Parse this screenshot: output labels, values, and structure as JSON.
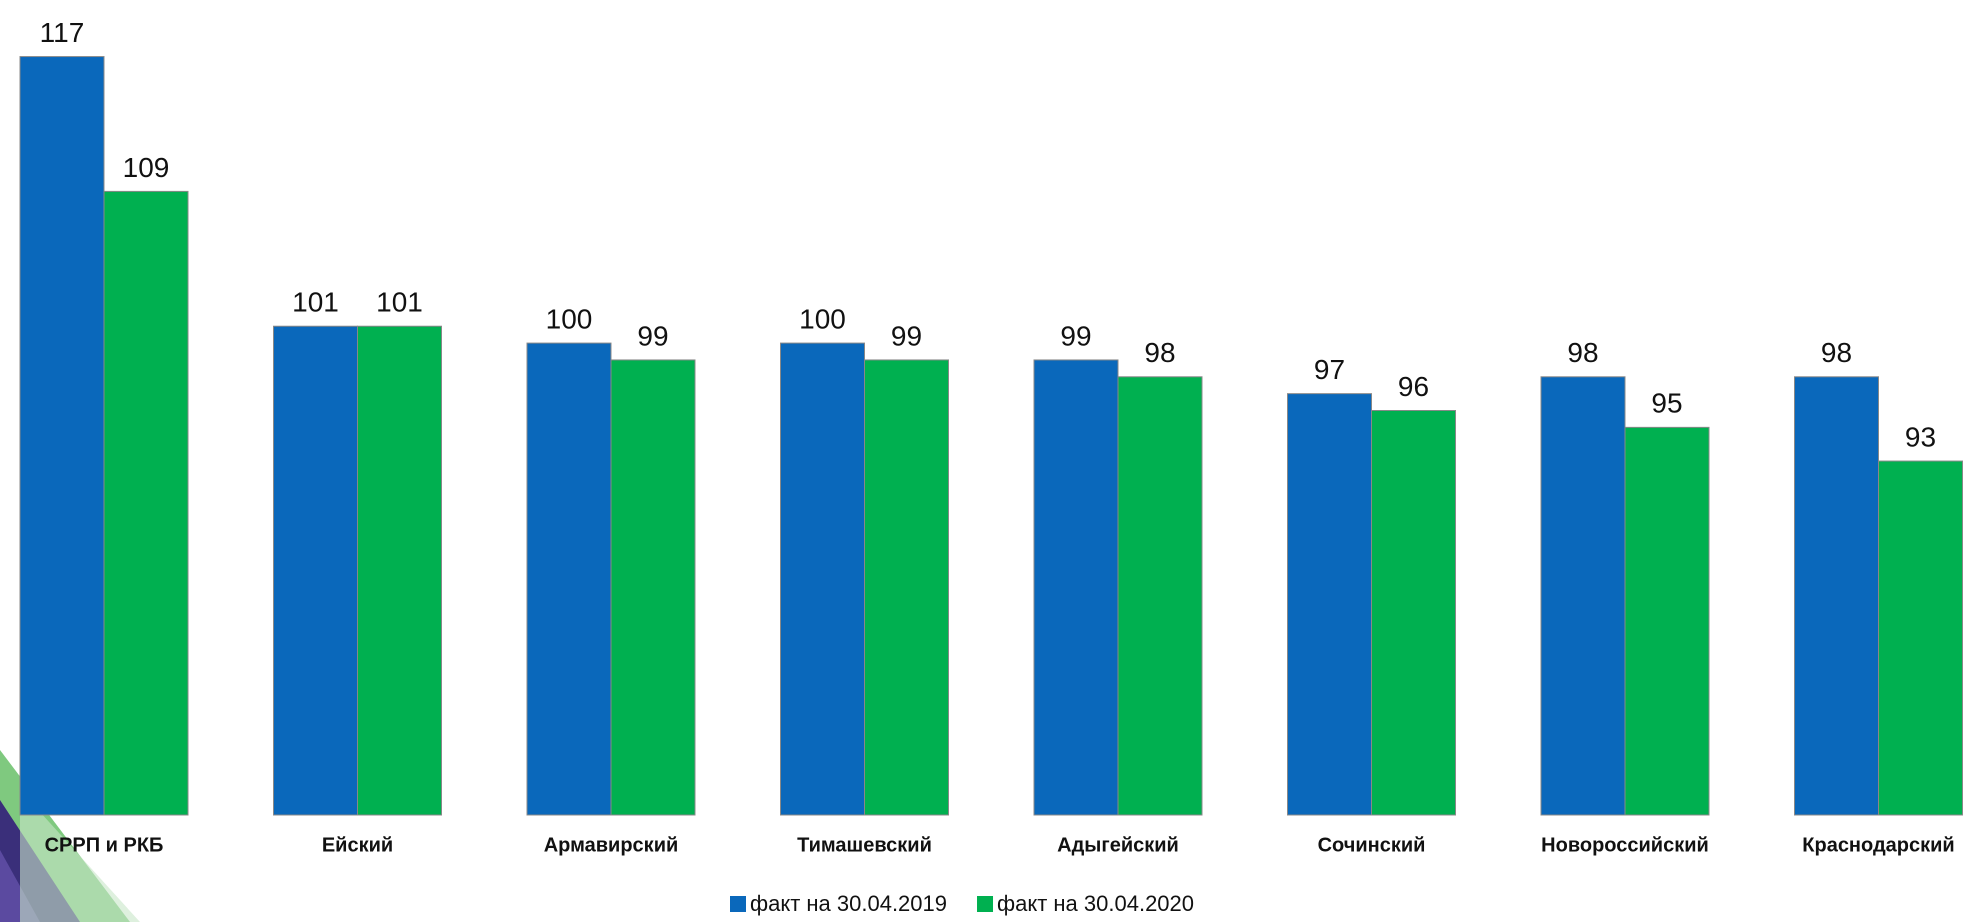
{
  "chart_data": {
    "type": "bar",
    "categories": [
      "СРРП и РКБ",
      "Ейский",
      "Армавирский",
      "Тимашевский",
      "Адыгейский",
      "Сочинский",
      "Новороссийский",
      "Краснодарский"
    ],
    "series": [
      {
        "name": "факт на 30.04.2019",
        "color": "#0a68bb",
        "values": [
          117,
          101,
          100,
          100,
          99,
          97,
          98,
          98
        ]
      },
      {
        "name": "факт на 30.04.2020",
        "color": "#00b050",
        "values": [
          109,
          101,
          99,
          99,
          98,
          96,
          95,
          93
        ]
      }
    ],
    "ylim": [
      72,
      120
    ]
  }
}
